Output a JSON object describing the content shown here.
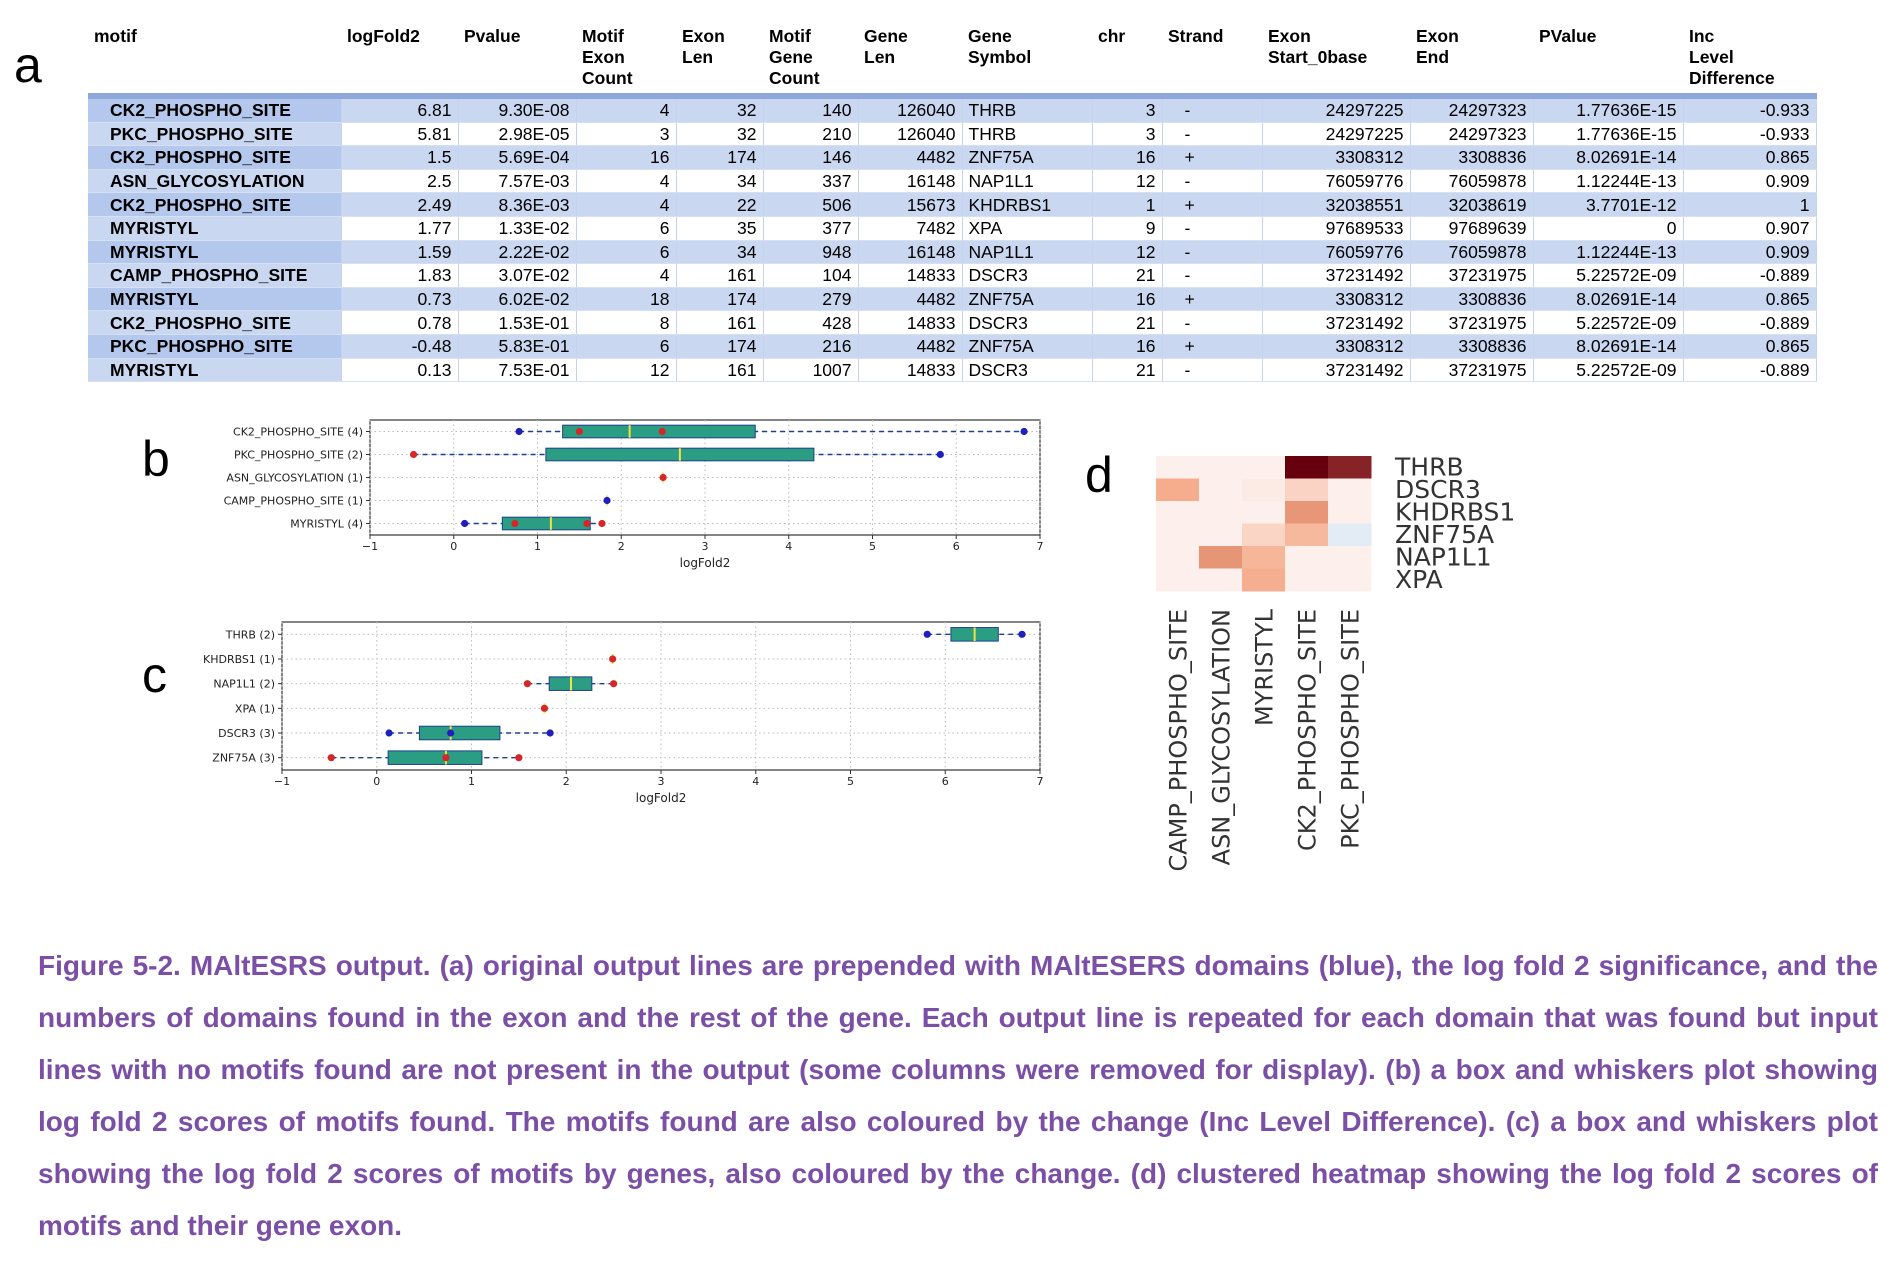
{
  "figure": {
    "panel_letters": {
      "a": "a",
      "b": "b",
      "c": "c",
      "d": "d"
    },
    "caption": "Figure 5-2. MAltESRS output. (a) original output lines are prepended with MAltESERS domains (blue), the log fold 2 significance, and the numbers of domains found in the exon and the rest of the gene. Each output line is repeated for each domain that was found but input lines with no motifs found are not present in the output (some columns were removed for display). (b) a box and whiskers plot showing log fold 2 scores of motifs found. The motifs found are also coloured by the change (Inc Level Difference). (c) a box and whiskers plot showing the log fold 2 scores of motifs by genes, also coloured by the change. (d) clustered heatmap showing the log fold 2 scores of motifs and their gene exon."
  },
  "table": {
    "headers": [
      "motif",
      "logFold2",
      "Pvalue",
      "Motif\nExon\n Count",
      "Exon\nLen",
      "Motif\nGene\nCount",
      "Gene\nLen",
      "Gene\nSymbol",
      "chr",
      "Strand",
      "Exon\nStart_0base",
      "Exon\nEnd",
      "PValue",
      "Inc\nLevel\nDifference"
    ],
    "rows": [
      [
        "CK2_PHOSPHO_SITE",
        "6.81",
        "9.30E-08",
        "4",
        "32",
        "140",
        "126040",
        "THRB",
        "3",
        "-",
        "24297225",
        "24297323",
        "1.77636E-15",
        "-0.933"
      ],
      [
        "PKC_PHOSPHO_SITE",
        "5.81",
        "2.98E-05",
        "3",
        "32",
        "210",
        "126040",
        "THRB",
        "3",
        "-",
        "24297225",
        "24297323",
        "1.77636E-15",
        "-0.933"
      ],
      [
        "CK2_PHOSPHO_SITE",
        "1.5",
        "5.69E-04",
        "16",
        "174",
        "146",
        "4482",
        "ZNF75A",
        "16",
        "+",
        "3308312",
        "3308836",
        "8.02691E-14",
        "0.865"
      ],
      [
        "ASN_GLYCOSYLATION",
        "2.5",
        "7.57E-03",
        "4",
        "34",
        "337",
        "16148",
        "NAP1L1",
        "12",
        "-",
        "76059776",
        "76059878",
        "1.12244E-13",
        "0.909"
      ],
      [
        "CK2_PHOSPHO_SITE",
        "2.49",
        "8.36E-03",
        "4",
        "22",
        "506",
        "15673",
        "KHDRBS1",
        "1",
        "+",
        "32038551",
        "32038619",
        "3.7701E-12",
        "1"
      ],
      [
        "MYRISTYL",
        "1.77",
        "1.33E-02",
        "6",
        "35",
        "377",
        "7482",
        "XPA",
        "9",
        "-",
        "97689533",
        "97689639",
        "0",
        "0.907"
      ],
      [
        "MYRISTYL",
        "1.59",
        "2.22E-02",
        "6",
        "34",
        "948",
        "16148",
        "NAP1L1",
        "12",
        "-",
        "76059776",
        "76059878",
        "1.12244E-13",
        "0.909"
      ],
      [
        "CAMP_PHOSPHO_SITE",
        "1.83",
        "3.07E-02",
        "4",
        "161",
        "104",
        "14833",
        "DSCR3",
        "21",
        "-",
        "37231492",
        "37231975",
        "5.22572E-09",
        "-0.889"
      ],
      [
        "MYRISTYL",
        "0.73",
        "6.02E-02",
        "18",
        "174",
        "279",
        "4482",
        "ZNF75A",
        "16",
        "+",
        "3308312",
        "3308836",
        "8.02691E-14",
        "0.865"
      ],
      [
        "CK2_PHOSPHO_SITE",
        "0.78",
        "1.53E-01",
        "8",
        "161",
        "428",
        "14833",
        "DSCR3",
        "21",
        "-",
        "37231492",
        "37231975",
        "5.22572E-09",
        "-0.889"
      ],
      [
        "PKC_PHOSPHO_SITE",
        "-0.48",
        "5.83E-01",
        "6",
        "174",
        "216",
        "4482",
        "ZNF75A",
        "16",
        "+",
        "3308312",
        "3308836",
        "8.02691E-14",
        "0.865"
      ],
      [
        "MYRISTYL",
        "0.13",
        "7.53E-01",
        "12",
        "161",
        "1007",
        "14833",
        "DSCR3",
        "21",
        "-",
        "37231492",
        "37231975",
        "5.22572E-09",
        "-0.889"
      ]
    ]
  },
  "chart_data": [
    {
      "type": "box",
      "panel": "b",
      "xlabel": "logFold2",
      "xlim": [
        -1,
        7
      ],
      "xticks": [
        -1,
        0,
        1,
        2,
        3,
        4,
        5,
        6,
        7
      ],
      "grid": true,
      "categories": [
        "CK2_PHOSPHO_SITE (4)",
        "PKC_PHOSPHO_SITE (2)",
        "ASN_GLYCOSYLATION (1)",
        "CAMP_PHOSPHO_SITE (1)",
        "MYRISTYL (4)"
      ],
      "boxes": [
        {
          "q1": 1.3,
          "median": 2.1,
          "q3": 3.6,
          "whisker_low": 0.78,
          "whisker_high": 6.81,
          "points": [
            {
              "x": 0.78,
              "color": "blue"
            },
            {
              "x": 1.5,
              "color": "red"
            },
            {
              "x": 2.49,
              "color": "red"
            },
            {
              "x": 6.81,
              "color": "blue"
            }
          ]
        },
        {
          "q1": 1.1,
          "median": 2.7,
          "q3": 4.3,
          "whisker_low": -0.48,
          "whisker_high": 5.81,
          "points": [
            {
              "x": -0.48,
              "color": "red"
            },
            {
              "x": 5.81,
              "color": "blue"
            }
          ]
        },
        {
          "q1": null,
          "median": 2.5,
          "q3": null,
          "whisker_low": 2.5,
          "whisker_high": 2.5,
          "points": [
            {
              "x": 2.5,
              "color": "red"
            }
          ]
        },
        {
          "q1": null,
          "median": 1.83,
          "q3": null,
          "whisker_low": 1.83,
          "whisker_high": 1.83,
          "points": [
            {
              "x": 1.83,
              "color": "blue"
            }
          ]
        },
        {
          "q1": 0.58,
          "median": 1.16,
          "q3": 1.63,
          "whisker_low": 0.13,
          "whisker_high": 1.77,
          "points": [
            {
              "x": 0.13,
              "color": "blue"
            },
            {
              "x": 0.73,
              "color": "red"
            },
            {
              "x": 1.59,
              "color": "red"
            },
            {
              "x": 1.77,
              "color": "red"
            }
          ]
        }
      ],
      "colors": {
        "box": "#2a9d82",
        "box_edge": "#1f3f8f",
        "median": "#f0e442",
        "red": "#d62728",
        "blue": "#1f1fbf",
        "whisker": "#1f3f8f"
      }
    },
    {
      "type": "box",
      "panel": "c",
      "xlabel": "logFold2",
      "xlim": [
        -1,
        7
      ],
      "xticks": [
        -1,
        0,
        1,
        2,
        3,
        4,
        5,
        6,
        7
      ],
      "grid": true,
      "categories": [
        "THRB (2)",
        "KHDRBS1 (1)",
        "NAP1L1 (2)",
        "XPA (1)",
        "DSCR3 (3)",
        "ZNF75A (3)"
      ],
      "boxes": [
        {
          "q1": 6.06,
          "median": 6.31,
          "q3": 6.56,
          "whisker_low": 5.81,
          "whisker_high": 6.81,
          "points": [
            {
              "x": 5.81,
              "color": "blue"
            },
            {
              "x": 6.81,
              "color": "blue"
            }
          ]
        },
        {
          "q1": null,
          "median": 2.49,
          "q3": null,
          "whisker_low": 2.49,
          "whisker_high": 2.49,
          "points": [
            {
              "x": 2.49,
              "color": "red"
            }
          ]
        },
        {
          "q1": 1.82,
          "median": 2.05,
          "q3": 2.27,
          "whisker_low": 1.59,
          "whisker_high": 2.5,
          "points": [
            {
              "x": 1.59,
              "color": "red"
            },
            {
              "x": 2.5,
              "color": "red"
            }
          ]
        },
        {
          "q1": null,
          "median": 1.77,
          "q3": null,
          "whisker_low": 1.77,
          "whisker_high": 1.77,
          "points": [
            {
              "x": 1.77,
              "color": "red"
            }
          ]
        },
        {
          "q1": 0.45,
          "median": 0.78,
          "q3": 1.3,
          "whisker_low": 0.13,
          "whisker_high": 1.83,
          "points": [
            {
              "x": 0.13,
              "color": "blue"
            },
            {
              "x": 0.78,
              "color": "blue"
            },
            {
              "x": 1.83,
              "color": "blue"
            }
          ]
        },
        {
          "q1": 0.12,
          "median": 0.73,
          "q3": 1.11,
          "whisker_low": -0.48,
          "whisker_high": 1.5,
          "points": [
            {
              "x": -0.48,
              "color": "red"
            },
            {
              "x": 0.73,
              "color": "red"
            },
            {
              "x": 1.5,
              "color": "red"
            }
          ]
        }
      ],
      "colors": {
        "box": "#2a9d82",
        "box_edge": "#1f3f8f",
        "median": "#f0e442",
        "red": "#d62728",
        "blue": "#1f1fbf",
        "whisker": "#1f3f8f"
      }
    },
    {
      "type": "heatmap",
      "panel": "d",
      "rows": [
        "THRB",
        "DSCR3",
        "KHDRBS1",
        "ZNF75A",
        "NAP1L1",
        "XPA"
      ],
      "columns": [
        "CAMP_PHOSPHO_SITE",
        "ASN_GLYCOSYLATION",
        "MYRISTYL",
        "CK2_PHOSPHO_SITE",
        "PKC_PHOSPHO_SITE"
      ],
      "values": [
        [
          0,
          0,
          0,
          6.81,
          5.81
        ],
        [
          1.83,
          0,
          0.13,
          0.78,
          0
        ],
        [
          0,
          0,
          0,
          2.49,
          0
        ],
        [
          0,
          0,
          0.73,
          1.5,
          -0.48
        ],
        [
          0,
          2.5,
          1.59,
          0,
          0
        ],
        [
          0,
          0,
          1.77,
          0,
          0
        ]
      ],
      "colors": {
        "high": "#67000d",
        "mid": "#f4a582",
        "low": "#fdf0ec",
        "negative": "#e3ebf5"
      }
    }
  ]
}
